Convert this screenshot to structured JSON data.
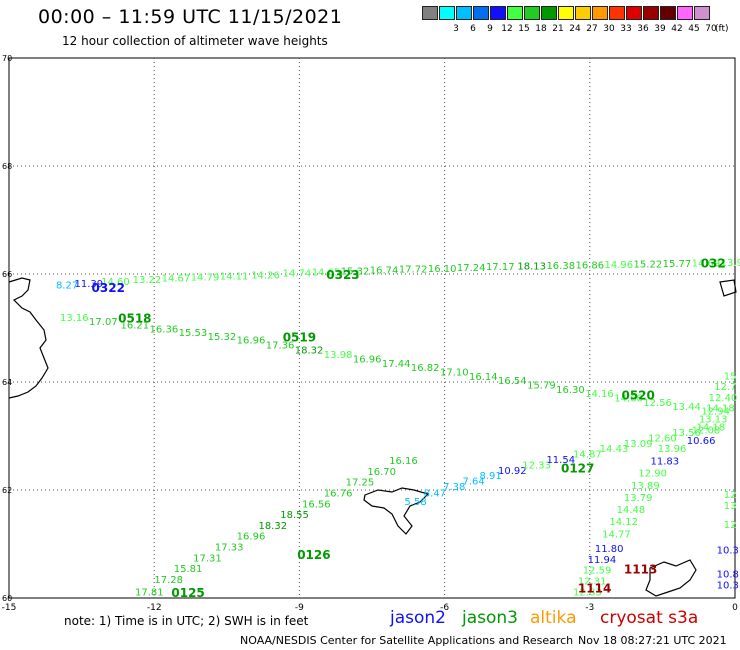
{
  "header": {
    "title": "00:00 – 11:59 UTC 11/15/2021",
    "subtitle": "12 hour collection of altimeter wave heights"
  },
  "legend": {
    "unit": "(ft)",
    "bins": [
      {
        "label": "",
        "color": "#808080"
      },
      {
        "label": "3",
        "color": "#00ffff"
      },
      {
        "label": "6",
        "color": "#00bfff"
      },
      {
        "label": "9",
        "color": "#0070f0"
      },
      {
        "label": "12",
        "color": "#1010ff"
      },
      {
        "label": "15",
        "color": "#44ff44"
      },
      {
        "label": "18",
        "color": "#22cc22"
      },
      {
        "label": "21",
        "color": "#009900"
      },
      {
        "label": "24",
        "color": "#ffff00"
      },
      {
        "label": "27",
        "color": "#ffcc00"
      },
      {
        "label": "30",
        "color": "#ff9900"
      },
      {
        "label": "33",
        "color": "#ff3300"
      },
      {
        "label": "36",
        "color": "#dd0000"
      },
      {
        "label": "39",
        "color": "#990000"
      },
      {
        "label": "42",
        "color": "#660000"
      },
      {
        "label": "45",
        "color": "#ff66ff"
      },
      {
        "label": "70",
        "color": "#d090d0"
      }
    ]
  },
  "map": {
    "lon_range": [
      -15,
      0
    ],
    "lat_range": [
      60,
      70
    ],
    "x_ticks": [
      "-15",
      "-12",
      "-9",
      "-6",
      "-3",
      "0"
    ],
    "y_ticks": [
      "70",
      "68",
      "66",
      "64",
      "62",
      "60"
    ],
    "grid": true,
    "tracks": [
      {
        "satellite": "jason3",
        "pass_label": "0323",
        "points": [
          {
            "lon": -13.8,
            "lat": 65.73,
            "v": "8.27",
            "c": "#00bfff"
          },
          {
            "lon": -13.35,
            "lat": 65.76,
            "v": "11.39",
            "c": "#1010ff"
          },
          {
            "lon": -12.8,
            "lat": 65.8,
            "v": "14.60",
            "c": "#44ff44"
          },
          {
            "lon": -12.15,
            "lat": 65.83,
            "v": "13.22",
            "c": "#44ff44"
          },
          {
            "lon": -11.55,
            "lat": 65.86,
            "v": "14.67",
            "c": "#44ff44"
          },
          {
            "lon": -10.95,
            "lat": 65.88,
            "v": "14.79",
            "c": "#44ff44"
          },
          {
            "lon": -10.35,
            "lat": 65.9,
            "v": "14.11",
            "c": "#44ff44"
          },
          {
            "lon": -9.7,
            "lat": 65.92,
            "v": "14.26",
            "c": "#44ff44"
          },
          {
            "lon": -9.05,
            "lat": 65.95,
            "v": "14.74",
            "c": "#44ff44"
          },
          {
            "lon": -8.45,
            "lat": 65.97,
            "v": "14.65",
            "c": "#44ff44"
          },
          {
            "lon": -7.85,
            "lat": 65.99,
            "v": "15.32",
            "c": "#22cc22"
          },
          {
            "lon": -7.25,
            "lat": 66.01,
            "v": "16.74",
            "c": "#22cc22"
          },
          {
            "lon": -6.65,
            "lat": 66.03,
            "v": "17.72",
            "c": "#22cc22"
          },
          {
            "lon": -6.05,
            "lat": 66.04,
            "v": "16.10",
            "c": "#22cc22"
          },
          {
            "lon": -5.45,
            "lat": 66.06,
            "v": "17.24",
            "c": "#22cc22"
          },
          {
            "lon": -4.85,
            "lat": 66.07,
            "v": "17.17",
            "c": "#22cc22"
          },
          {
            "lon": -4.2,
            "lat": 66.08,
            "v": "18.13",
            "c": "#009900"
          },
          {
            "lon": -3.6,
            "lat": 66.09,
            "v": "16.38",
            "c": "#22cc22"
          },
          {
            "lon": -3.0,
            "lat": 66.1,
            "v": "16.86",
            "c": "#22cc22"
          },
          {
            "lon": -2.4,
            "lat": 66.11,
            "v": "14.96",
            "c": "#44ff44"
          },
          {
            "lon": -1.8,
            "lat": 66.12,
            "v": "15.22",
            "c": "#22cc22"
          },
          {
            "lon": -1.2,
            "lat": 66.13,
            "v": "15.77",
            "c": "#22cc22"
          },
          {
            "lon": -0.6,
            "lat": 66.14,
            "v": "14.69",
            "c": "#44ff44"
          },
          {
            "lon": 0.0,
            "lat": 66.15,
            "v": "13.99",
            "c": "#44ff44"
          }
        ],
        "pass_labels": [
          {
            "text": "0322",
            "lon": -12.95,
            "lat": 65.67,
            "c": "#1010ff"
          },
          {
            "text": "0323",
            "lon": -8.1,
            "lat": 65.91,
            "c": "#009900"
          },
          {
            "text": "032",
            "lon": -0.45,
            "lat": 66.12,
            "c": "#009900"
          }
        ]
      },
      {
        "satellite": "jason3",
        "pass_label": "0519",
        "points": [
          {
            "lon": -13.65,
            "lat": 65.13,
            "v": "13.16",
            "c": "#44ff44"
          },
          {
            "lon": -13.05,
            "lat": 65.06,
            "v": "17.07",
            "c": "#22cc22"
          },
          {
            "lon": -12.4,
            "lat": 64.99,
            "v": "16.21",
            "c": "#22cc22"
          },
          {
            "lon": -11.8,
            "lat": 64.92,
            "v": "16.36",
            "c": "#22cc22"
          },
          {
            "lon": -11.2,
            "lat": 64.85,
            "v": "15.53",
            "c": "#22cc22"
          },
          {
            "lon": -10.6,
            "lat": 64.78,
            "v": "15.32",
            "c": "#22cc22"
          },
          {
            "lon": -10.0,
            "lat": 64.71,
            "v": "16.96",
            "c": "#22cc22"
          },
          {
            "lon": -9.4,
            "lat": 64.62,
            "v": "17.36",
            "c": "#22cc22"
          },
          {
            "lon": -8.8,
            "lat": 64.53,
            "v": "18.32",
            "c": "#009900"
          },
          {
            "lon": -8.2,
            "lat": 64.44,
            "v": "13.98",
            "c": "#44ff44"
          },
          {
            "lon": -7.6,
            "lat": 64.36,
            "v": "16.96",
            "c": "#22cc22"
          },
          {
            "lon": -7.0,
            "lat": 64.28,
            "v": "17.44",
            "c": "#22cc22"
          },
          {
            "lon": -6.4,
            "lat": 64.2,
            "v": "16.82",
            "c": "#22cc22"
          },
          {
            "lon": -5.8,
            "lat": 64.12,
            "v": "17.10",
            "c": "#22cc22"
          },
          {
            "lon": -5.2,
            "lat": 64.04,
            "v": "16.14",
            "c": "#22cc22"
          },
          {
            "lon": -4.6,
            "lat": 63.96,
            "v": "16.54",
            "c": "#22cc22"
          },
          {
            "lon": -4.0,
            "lat": 63.88,
            "v": "15.79",
            "c": "#22cc22"
          },
          {
            "lon": -3.4,
            "lat": 63.8,
            "v": "16.30",
            "c": "#22cc22"
          },
          {
            "lon": -2.8,
            "lat": 63.72,
            "v": "14.16",
            "c": "#44ff44"
          },
          {
            "lon": -2.2,
            "lat": 63.64,
            "v": "14.66",
            "c": "#44ff44"
          },
          {
            "lon": -1.6,
            "lat": 63.56,
            "v": "12.56",
            "c": "#44ff44"
          },
          {
            "lon": -1.0,
            "lat": 63.48,
            "v": "13.44",
            "c": "#44ff44"
          },
          {
            "lon": -0.4,
            "lat": 63.4,
            "v": "12.94",
            "c": "#44ff44"
          }
        ],
        "pass_labels": [
          {
            "text": "0518",
            "lon": -12.4,
            "lat": 65.1,
            "c": "#009900"
          },
          {
            "text": "0519",
            "lon": -9.0,
            "lat": 64.75,
            "c": "#009900"
          },
          {
            "text": "0520",
            "lon": -2.0,
            "lat": 63.68,
            "c": "#009900"
          }
        ]
      },
      {
        "satellite": "jason3",
        "pass_label": "0126",
        "points": [
          {
            "lon": -12.1,
            "lat": 60.05,
            "v": "17.81",
            "c": "#22cc22"
          },
          {
            "lon": -11.7,
            "lat": 60.28,
            "v": "17.28",
            "c": "#22cc22"
          },
          {
            "lon": -11.3,
            "lat": 60.48,
            "v": "15.81",
            "c": "#22cc22"
          },
          {
            "lon": -10.9,
            "lat": 60.68,
            "v": "17.31",
            "c": "#22cc22"
          },
          {
            "lon": -10.45,
            "lat": 60.88,
            "v": "17.33",
            "c": "#22cc22"
          },
          {
            "lon": -10.0,
            "lat": 61.08,
            "v": "16.96",
            "c": "#22cc22"
          },
          {
            "lon": -9.55,
            "lat": 61.28,
            "v": "18.32",
            "c": "#009900"
          },
          {
            "lon": -9.1,
            "lat": 61.48,
            "v": "18.55",
            "c": "#009900"
          },
          {
            "lon": -8.65,
            "lat": 61.68,
            "v": "16.56",
            "c": "#22cc22"
          },
          {
            "lon": -8.2,
            "lat": 61.88,
            "v": "16.76",
            "c": "#22cc22"
          },
          {
            "lon": -7.75,
            "lat": 62.08,
            "v": "17.25",
            "c": "#22cc22"
          },
          {
            "lon": -7.3,
            "lat": 62.28,
            "v": "16.70",
            "c": "#22cc22"
          },
          {
            "lon": -6.85,
            "lat": 62.48,
            "v": "16.16",
            "c": "#22cc22"
          }
        ],
        "pass_labels": [
          {
            "text": "0125",
            "lon": -11.3,
            "lat": 60.02,
            "c": "#009900"
          },
          {
            "text": "0126",
            "lon": -8.7,
            "lat": 60.72,
            "c": "#009900"
          }
        ]
      },
      {
        "satellite": "jason2",
        "pass_label": "0127",
        "points": [
          {
            "lon": -6.6,
            "lat": 61.72,
            "v": "5.58",
            "c": "#00bfff"
          },
          {
            "lon": -6.2,
            "lat": 61.88,
            "v": "8.47",
            "c": "#00bfff"
          },
          {
            "lon": -5.8,
            "lat": 62.0,
            "v": "7.38",
            "c": "#00bfff"
          },
          {
            "lon": -5.4,
            "lat": 62.1,
            "v": "7.64",
            "c": "#00bfff"
          },
          {
            "lon": -5.05,
            "lat": 62.2,
            "v": "8.91",
            "c": "#00bfff"
          },
          {
            "lon": -4.6,
            "lat": 62.3,
            "v": "10.92",
            "c": "#1010ff"
          },
          {
            "lon": -4.1,
            "lat": 62.4,
            "v": "12.33",
            "c": "#44ff44"
          },
          {
            "lon": -3.6,
            "lat": 62.5,
            "v": "11.54",
            "c": "#1010ff"
          },
          {
            "lon": -3.05,
            "lat": 62.6,
            "v": "14.87",
            "c": "#44ff44"
          },
          {
            "lon": -2.5,
            "lat": 62.7,
            "v": "14.43",
            "c": "#44ff44"
          },
          {
            "lon": -2.0,
            "lat": 62.8,
            "v": "13.09",
            "c": "#44ff44"
          },
          {
            "lon": -1.5,
            "lat": 62.9,
            "v": "12.60",
            "c": "#44ff44"
          },
          {
            "lon": -1.0,
            "lat": 63.0,
            "v": "13.56",
            "c": "#44ff44"
          },
          {
            "lon": -0.5,
            "lat": 63.1,
            "v": "14.18",
            "c": "#44ff44"
          }
        ],
        "pass_labels": [
          {
            "text": "0127",
            "lon": -3.25,
            "lat": 62.32,
            "c": "#009900"
          }
        ]
      },
      {
        "satellite": "jason3",
        "pass_label": "",
        "points": [
          {
            "lon": -1.3,
            "lat": 62.7,
            "v": "13.96",
            "c": "#44ff44"
          },
          {
            "lon": -1.45,
            "lat": 62.47,
            "v": "11.83",
            "c": "#1010ff"
          },
          {
            "lon": -1.7,
            "lat": 62.25,
            "v": "12.90",
            "c": "#44ff44"
          },
          {
            "lon": -1.85,
            "lat": 62.02,
            "v": "13.89",
            "c": "#44ff44"
          },
          {
            "lon": -2.0,
            "lat": 61.8,
            "v": "13.79",
            "c": "#44ff44"
          },
          {
            "lon": -2.15,
            "lat": 61.57,
            "v": "14.48",
            "c": "#44ff44"
          },
          {
            "lon": -2.3,
            "lat": 61.35,
            "v": "14.12",
            "c": "#44ff44"
          },
          {
            "lon": -2.45,
            "lat": 61.12,
            "v": "14.77",
            "c": "#44ff44"
          },
          {
            "lon": -2.6,
            "lat": 60.85,
            "v": "11.80",
            "c": "#1010ff"
          },
          {
            "lon": -2.75,
            "lat": 60.65,
            "v": "11.94",
            "c": "#1010ff"
          },
          {
            "lon": -2.85,
            "lat": 60.45,
            "v": "12.59",
            "c": "#44ff44"
          },
          {
            "lon": -2.95,
            "lat": 60.25,
            "v": "12.31",
            "c": "#44ff44"
          },
          {
            "lon": -3.05,
            "lat": 60.05,
            "v": "12.83",
            "c": "#44ff44"
          }
        ],
        "pass_labels": []
      },
      {
        "satellite": "jason3",
        "pass_label": "",
        "points": [
          {
            "lon": -0.1,
            "lat": 64.05,
            "v": "15",
            "c": "#44ff44"
          },
          {
            "lon": -0.2,
            "lat": 63.85,
            "v": "12.7",
            "c": "#44ff44"
          },
          {
            "lon": -0.25,
            "lat": 63.65,
            "v": "12.40",
            "c": "#44ff44"
          },
          {
            "lon": -0.3,
            "lat": 63.45,
            "v": "14.18",
            "c": "#44ff44"
          },
          {
            "lon": -0.45,
            "lat": 63.25,
            "v": "13.13",
            "c": "#44ff44"
          },
          {
            "lon": -0.6,
            "lat": 63.05,
            "v": "12.08",
            "c": "#44ff44"
          },
          {
            "lon": -0.7,
            "lat": 62.85,
            "v": "10.66",
            "c": "#1010ff"
          },
          {
            "lon": -0.1,
            "lat": 61.85,
            "v": "12",
            "c": "#44ff44"
          },
          {
            "lon": -0.1,
            "lat": 61.65,
            "v": "13",
            "c": "#44ff44"
          },
          {
            "lon": -0.1,
            "lat": 61.3,
            "v": "12",
            "c": "#44ff44"
          },
          {
            "lon": -0.15,
            "lat": 60.82,
            "v": "10.3",
            "c": "#1010ff"
          },
          {
            "lon": -0.15,
            "lat": 60.38,
            "v": "10.8",
            "c": "#1010ff"
          },
          {
            "lon": -0.15,
            "lat": 60.18,
            "v": "10.3",
            "c": "#1010ff"
          }
        ],
        "pass_labels": []
      },
      {
        "satellite": "cryosat",
        "pass_label": "1113",
        "points": [],
        "pass_labels": [
          {
            "text": "1113",
            "lon": -1.95,
            "lat": 60.45,
            "c": "#990000"
          },
          {
            "text": "1114",
            "lon": -2.9,
            "lat": 60.1,
            "c": "#990000"
          }
        ]
      }
    ]
  },
  "footer": {
    "note": "note: 1) Time is in UTC; 2) SWH is in feet",
    "satellites": [
      {
        "name": "jason2",
        "color": "#1010ff"
      },
      {
        "name": "jason3",
        "color": "#009900"
      },
      {
        "name": "altika",
        "color": "#ff9900"
      },
      {
        "name": "cryosat s3a",
        "color": "#cc0000"
      }
    ],
    "credit": "NOAA/NESDIS Center for Satellite Applications and Research",
    "timestamp": "Nov 18 08:27:21 UTC 2021"
  }
}
